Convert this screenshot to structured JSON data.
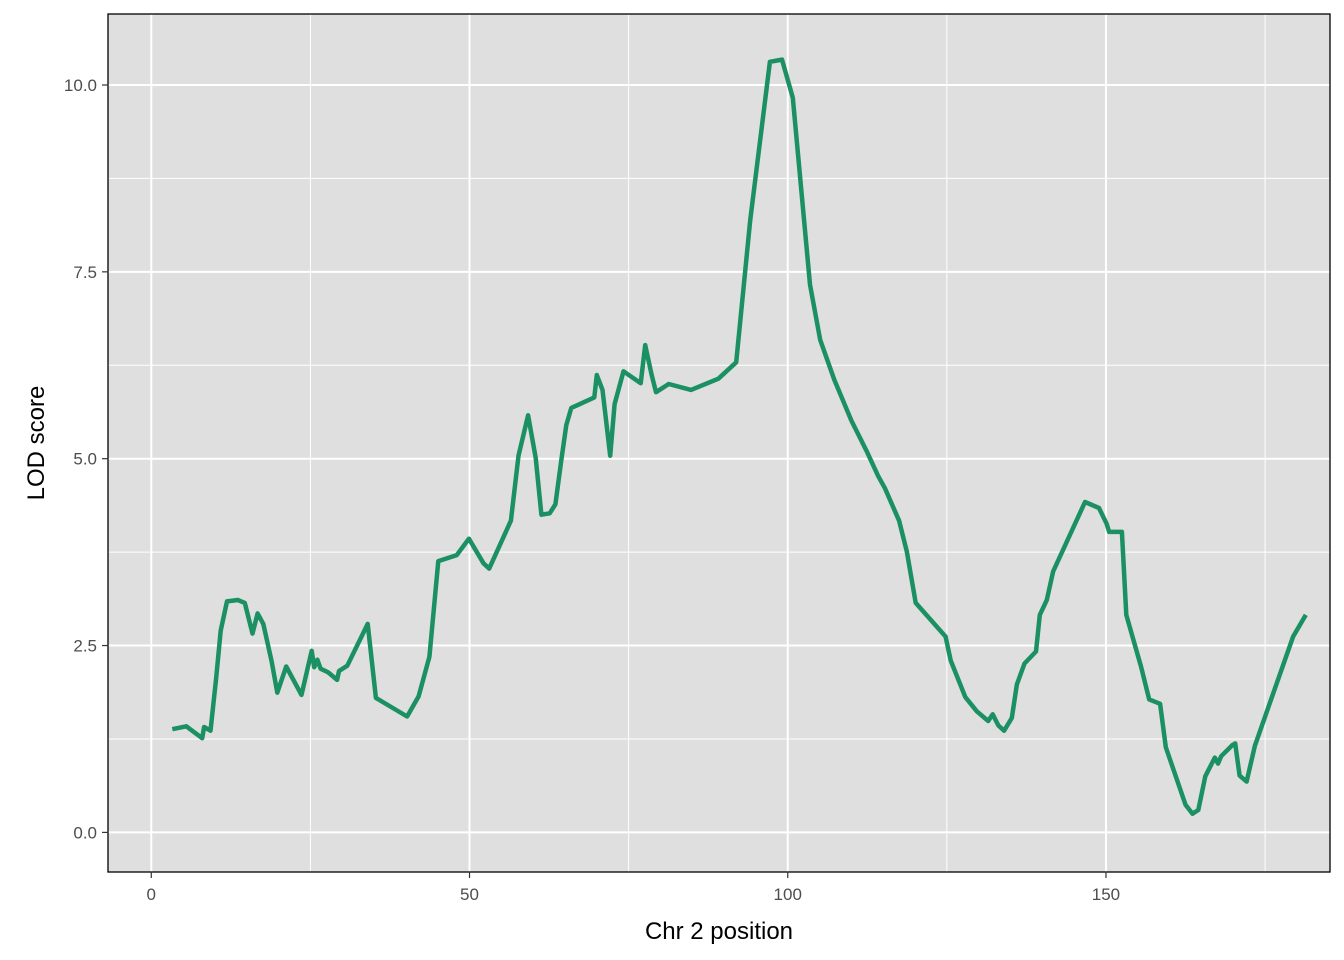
{
  "chart_data": {
    "type": "line",
    "title": "",
    "xlabel": "Chr 2 position",
    "ylabel": "LOD score",
    "xlim": [
      -6.8,
      185.2
    ],
    "ylim": [
      -0.53,
      10.95
    ],
    "grid": true,
    "legend": "none",
    "colors": {
      "panel": "#dfdfdf",
      "grid": "#ffffff",
      "line": "#1b9063",
      "border": "#000000",
      "tick_text": "#4d4d4d"
    },
    "x_ticks": [
      {
        "value": 0,
        "label": "0"
      },
      {
        "value": 50,
        "label": "50"
      },
      {
        "value": 100,
        "label": "100"
      },
      {
        "value": 150,
        "label": "150"
      }
    ],
    "y_ticks": [
      {
        "value": 0,
        "label": "0.0"
      },
      {
        "value": 2.5,
        "label": "2.5"
      },
      {
        "value": 5,
        "label": "5.0"
      },
      {
        "value": 7.5,
        "label": "7.5"
      },
      {
        "value": 10,
        "label": "10.0"
      }
    ],
    "x_minor": [
      25,
      75,
      125,
      175
    ],
    "y_minor": [
      1.25,
      3.75,
      6.25,
      8.75
    ],
    "series": [
      {
        "x": [
          3.3,
          5.5,
          8,
          8.3,
          9.3,
          10.2,
          10.9,
          11.9,
          13.6,
          14.7,
          15.9,
          16.7,
          17.6,
          18.9,
          19.8,
          21.2,
          23.6,
          25.2,
          25.6,
          26.1,
          26.6,
          27.8,
          29.2,
          29.5,
          30.8,
          34,
          35.3,
          40.2,
          42,
          43.7,
          45.1,
          48,
          49.9,
          52.2,
          53.1,
          56.5,
          57.7,
          59.2,
          60.4,
          61.3,
          62.6,
          63.5,
          64.4,
          65.2,
          66,
          69.6,
          70,
          70.9,
          72.1,
          72.8,
          74.2,
          76.9,
          77.6,
          78.6,
          79.3,
          81.3,
          84.8,
          89.1,
          91.9,
          94.1,
          97.2,
          99.1,
          100.8,
          103.5,
          105.1,
          107.3,
          110,
          112.4,
          114.2,
          115.3,
          117.5,
          118.7,
          120.1,
          124.8,
          125.6,
          127.9,
          129.7,
          131.5,
          132.2,
          133.1,
          134,
          135.2,
          136,
          137.2,
          139,
          139.6,
          140.7,
          141.7,
          146.7,
          148.9,
          150.1,
          150.5,
          152.5,
          153.2,
          155.5,
          156.8,
          158.5,
          159.4,
          162.5,
          163.6,
          164.5,
          165.6,
          167.1,
          167.6,
          168.1,
          169.9,
          170.3,
          171,
          172.1,
          173.4,
          179.4,
          181.4
        ],
        "y": [
          1.38,
          1.42,
          1.26,
          1.41,
          1.36,
          2.07,
          2.7,
          3.09,
          3.11,
          3.07,
          2.66,
          2.93,
          2.79,
          2.29,
          1.87,
          2.22,
          1.84,
          2.43,
          2.21,
          2.31,
          2.19,
          2.14,
          2.04,
          2.16,
          2.23,
          2.79,
          1.8,
          1.55,
          1.82,
          2.35,
          3.63,
          3.71,
          3.93,
          3.6,
          3.53,
          4.17,
          5.04,
          5.58,
          5.01,
          4.25,
          4.27,
          4.39,
          4.97,
          5.45,
          5.68,
          5.82,
          6.12,
          5.92,
          5.04,
          5.73,
          6.17,
          6.01,
          6.52,
          6.13,
          5.89,
          6,
          5.92,
          6.07,
          6.29,
          8.19,
          10.31,
          10.34,
          9.83,
          7.33,
          6.59,
          6.06,
          5.51,
          5.1,
          4.77,
          4.6,
          4.17,
          3.76,
          3.07,
          2.62,
          2.3,
          1.81,
          1.62,
          1.49,
          1.58,
          1.43,
          1.36,
          1.53,
          1.98,
          2.26,
          2.42,
          2.91,
          3.11,
          3.49,
          4.42,
          4.34,
          4.13,
          4.02,
          4.02,
          2.91,
          2.22,
          1.78,
          1.72,
          1.14,
          0.37,
          0.25,
          0.3,
          0.75,
          1,
          0.92,
          1.02,
          1.17,
          1.19,
          0.76,
          0.68,
          1.16,
          2.62,
          2.91
        ]
      }
    ]
  }
}
